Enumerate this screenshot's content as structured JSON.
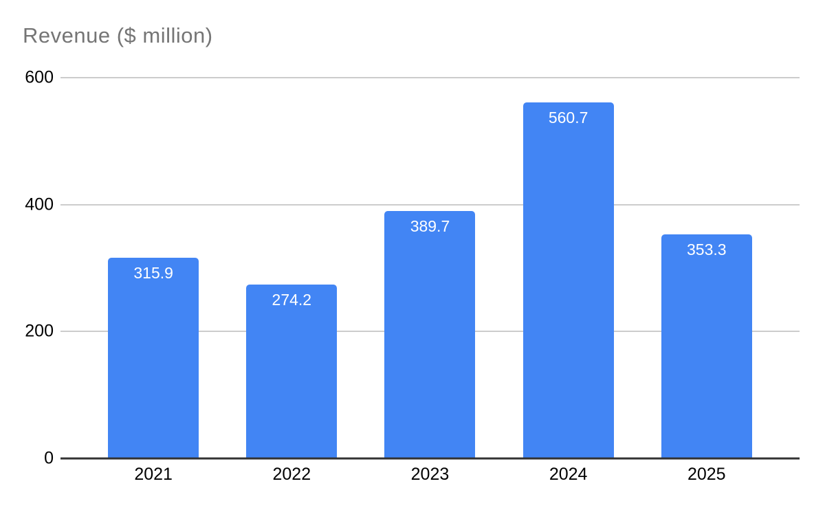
{
  "chart_data": {
    "type": "bar",
    "title": "Revenue ($ million)",
    "categories": [
      "2021",
      "2022",
      "2023",
      "2024",
      "2025"
    ],
    "values": [
      315.9,
      274.2,
      389.7,
      560.7,
      353.3
    ],
    "value_labels": [
      "315.9",
      "274.2",
      "389.7",
      "560.7",
      "353.3"
    ],
    "xlabel": "",
    "ylabel": "",
    "ylim": [
      0,
      600
    ],
    "yticks": [
      0,
      200,
      400,
      600
    ],
    "grid": true,
    "legend_position": "none",
    "colors": {
      "bar": "#4285F4",
      "title_text": "#757575",
      "gridline": "#cccccc",
      "axis_line": "#333333",
      "tick_label": "#000000",
      "value_label": "#ffffff"
    }
  }
}
